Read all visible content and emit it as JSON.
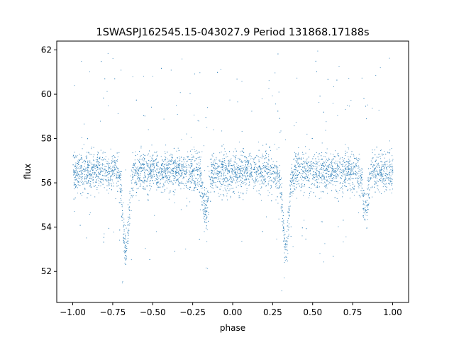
{
  "chart_data": {
    "type": "scatter",
    "title": "1SWASPJ162545.15-043027.9 Period 131868.17188s",
    "xlabel": "phase",
    "ylabel": "flux",
    "xlim": [
      -1.1,
      1.1
    ],
    "ylim": [
      50.6,
      62.4
    ],
    "xticks": [
      -1.0,
      -0.75,
      -0.5,
      -0.25,
      0.0,
      0.25,
      0.5,
      0.75,
      1.0
    ],
    "xtick_labels": [
      "−1.00",
      "−0.75",
      "−0.50",
      "−0.25",
      "0.00",
      "0.25",
      "0.50",
      "0.75",
      "1.00"
    ],
    "yticks": [
      52,
      54,
      56,
      58,
      60,
      62
    ],
    "ytick_labels": [
      "52",
      "54",
      "56",
      "58",
      "60",
      "62"
    ],
    "grid": false,
    "marker_color": "#1f77b4",
    "light_curve": {
      "baseline_flux": 56.5,
      "primary_eclipse": {
        "phase": -0.67,
        "min_flux": 53.0
      },
      "secondary_eclipse": {
        "phase": -0.17,
        "min_flux": 54.7
      },
      "repeat_period_phase": 1.0,
      "series_points": [
        [
          -1.0,
          56.6
        ],
        [
          -0.9,
          56.7
        ],
        [
          -0.8,
          56.4
        ],
        [
          -0.72,
          56.0
        ],
        [
          -0.69,
          54.0
        ],
        [
          -0.67,
          53.0
        ],
        [
          -0.65,
          54.0
        ],
        [
          -0.62,
          56.0
        ],
        [
          -0.5,
          56.6
        ],
        [
          -0.3,
          56.5
        ],
        [
          -0.21,
          56.0
        ],
        [
          -0.17,
          54.7
        ],
        [
          -0.13,
          56.0
        ],
        [
          0.0,
          56.6
        ],
        [
          0.2,
          56.5
        ],
        [
          0.28,
          56.0
        ],
        [
          0.31,
          54.0
        ],
        [
          0.33,
          53.0
        ],
        [
          0.35,
          54.0
        ],
        [
          0.38,
          56.0
        ],
        [
          0.5,
          56.6
        ],
        [
          0.7,
          56.5
        ],
        [
          0.79,
          56.0
        ],
        [
          0.83,
          54.7
        ],
        [
          0.87,
          56.0
        ],
        [
          1.0,
          56.6
        ]
      ]
    }
  }
}
